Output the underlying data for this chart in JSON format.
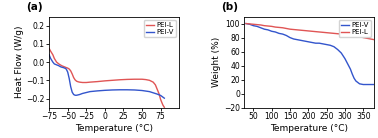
{
  "panel_a": {
    "label": "(a)",
    "xlabel": "Temperature (°C)",
    "ylabel": "Heat Flow (W/g)",
    "xlim": [
      -75,
      100
    ],
    "ylim": [
      -0.25,
      0.25
    ],
    "xticks": [
      -75,
      -50,
      -25,
      0,
      25,
      50,
      75
    ],
    "yticks": [
      -0.2,
      -0.1,
      0.0,
      0.1,
      0.2
    ],
    "legend": [
      "PEI-L",
      "PEI-V"
    ],
    "color_L": "#e05555",
    "color_V": "#3355cc",
    "pei_l_x": [
      -75,
      -73,
      -70,
      -68,
      -65,
      -62,
      -60,
      -58,
      -55,
      -52,
      -50,
      -48,
      -46,
      -44,
      -42,
      -40,
      -38,
      -36,
      -34,
      -32,
      -30,
      -25,
      -20,
      -10,
      0,
      10,
      20,
      30,
      40,
      50,
      55,
      60,
      65,
      68,
      70,
      73,
      75,
      78,
      80
    ],
    "pei_l_y": [
      0.075,
      0.06,
      0.04,
      0.02,
      0.0,
      -0.01,
      -0.015,
      -0.02,
      -0.025,
      -0.03,
      -0.033,
      -0.038,
      -0.048,
      -0.065,
      -0.085,
      -0.098,
      -0.105,
      -0.108,
      -0.11,
      -0.111,
      -0.112,
      -0.112,
      -0.11,
      -0.107,
      -0.103,
      -0.1,
      -0.097,
      -0.095,
      -0.094,
      -0.094,
      -0.096,
      -0.1,
      -0.11,
      -0.125,
      -0.145,
      -0.175,
      -0.205,
      -0.235,
      -0.248
    ],
    "pei_v_x": [
      -75,
      -73,
      -70,
      -68,
      -65,
      -62,
      -60,
      -58,
      -56,
      -54,
      -52,
      -50,
      -48,
      -46,
      -44,
      -42,
      -40,
      -38,
      -36,
      -34,
      -32,
      -30,
      -25,
      -20,
      -10,
      0,
      10,
      20,
      30,
      40,
      50,
      60,
      70,
      75,
      80
    ],
    "pei_v_y": [
      0.04,
      0.02,
      0.0,
      -0.01,
      -0.015,
      -0.02,
      -0.025,
      -0.028,
      -0.03,
      -0.033,
      -0.038,
      -0.055,
      -0.09,
      -0.135,
      -0.165,
      -0.178,
      -0.182,
      -0.182,
      -0.18,
      -0.178,
      -0.175,
      -0.172,
      -0.167,
      -0.162,
      -0.158,
      -0.155,
      -0.153,
      -0.152,
      -0.152,
      -0.153,
      -0.156,
      -0.162,
      -0.175,
      -0.183,
      -0.198
    ]
  },
  "panel_b": {
    "label": "(b)",
    "xlabel": "Temperature (°C)",
    "ylabel": "Weight (%)",
    "xlim": [
      25,
      380
    ],
    "ylim": [
      -20,
      110
    ],
    "xticks": [
      50,
      100,
      150,
      200,
      250,
      300,
      350
    ],
    "yticks": [
      -20,
      0,
      20,
      40,
      60,
      80,
      100
    ],
    "legend": [
      "PEI-V",
      "PEI-L"
    ],
    "color_L": "#e05555",
    "color_V": "#3355cc",
    "pei_v_x": [
      30,
      40,
      50,
      60,
      70,
      80,
      90,
      100,
      110,
      120,
      130,
      140,
      150,
      160,
      170,
      180,
      190,
      200,
      210,
      220,
      230,
      240,
      250,
      260,
      270,
      280,
      290,
      300,
      310,
      315,
      320,
      325,
      330,
      340,
      350,
      360,
      370,
      380
    ],
    "pei_v_y": [
      100,
      99,
      97,
      96,
      94,
      92,
      91,
      89,
      88,
      86,
      85,
      83,
      80,
      78,
      77,
      76,
      75,
      74,
      73,
      72,
      72,
      71,
      70,
      69,
      67,
      63,
      58,
      50,
      40,
      35,
      28,
      22,
      18,
      14,
      13,
      13,
      13,
      13
    ],
    "pei_l_x": [
      30,
      40,
      50,
      60,
      70,
      80,
      90,
      100,
      110,
      120,
      130,
      140,
      150,
      160,
      170,
      180,
      190,
      200,
      210,
      220,
      230,
      240,
      250,
      260,
      270,
      280,
      290,
      300,
      310,
      320,
      330,
      340,
      350,
      360,
      370,
      380
    ],
    "pei_l_y": [
      100,
      99.5,
      99,
      98.5,
      98,
      97,
      96.5,
      96,
      95,
      94.5,
      94,
      93,
      92,
      91.5,
      91,
      90.5,
      90,
      89.5,
      89,
      88.5,
      88,
      87.5,
      87,
      86.5,
      86,
      85.5,
      85,
      84,
      83.5,
      82.5,
      82,
      81.5,
      80,
      79,
      78,
      77
    ]
  },
  "background_color": "#ffffff",
  "font_size": 6.5
}
